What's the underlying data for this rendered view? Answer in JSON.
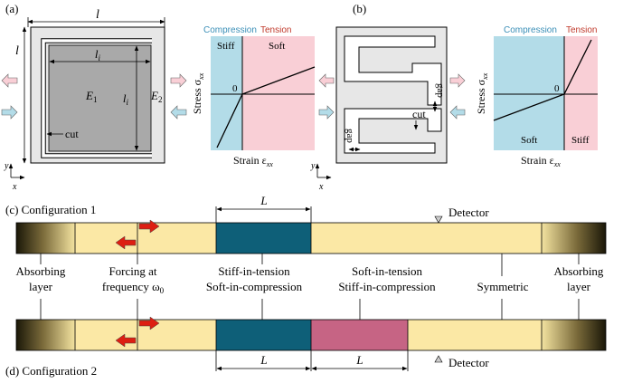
{
  "colors": {
    "compression": "#3a8fb7",
    "tension": "#c0392b",
    "compression_fill": "#b3dce8",
    "tension_fill": "#f9cfd6",
    "frame_fill": "#e7e7e7",
    "core_fill": "#a9a9a9",
    "bar_fill": "#fbe8a5",
    "stiff_tension_block": "#0e5f78",
    "soft_tension_block": "#c66484",
    "forcing_arrow": "#dd1f12",
    "absorber_dark": "#1a1708",
    "absorber_light": "#f3e3a0"
  },
  "panel_a": {
    "label": "(a)",
    "dim_l_top": "l",
    "dim_l_left": "l",
    "dim_li_horizontal": "l",
    "dim_li_vertical": "l",
    "li_subscript": "i",
    "e1": "E",
    "e1_sub": "1",
    "e2": "E",
    "e2_sub": "2",
    "cut_label": "cut",
    "axis_y": "y",
    "axis_x": "x"
  },
  "panel_b": {
    "label": "(b)",
    "gap_label_right": "gap",
    "gap_label_left": "gap",
    "cut_label": "cut",
    "axis_y": "y",
    "axis_x": "x"
  },
  "graph_a": {
    "header_compression": "Compression",
    "header_tension": "Tension",
    "region_left": "Stiff",
    "region_right": "Soft",
    "origin": "0",
    "ylabel": "Stress σ",
    "ylabel_sub": "xx",
    "xlabel": "Strain ε",
    "xlabel_sub": "xx"
  },
  "graph_b": {
    "header_compression": "Compression",
    "header_tension": "Tension",
    "region_left": "Soft",
    "region_right": "Stiff",
    "origin": "0",
    "ylabel": "Stress σ",
    "ylabel_sub": "xx",
    "xlabel": "Strain ε",
    "xlabel_sub": "xx"
  },
  "config1": {
    "label": "(c) Configuration 1",
    "dim_L": "L",
    "detector": "Detector"
  },
  "config2": {
    "label": "(d) Configuration 2",
    "dim_L1": "L",
    "dim_L2": "L",
    "detector": "Detector"
  },
  "annotations": {
    "absorbing_left_1": "Absorbing",
    "absorbing_left_2": "layer",
    "forcing_1": "Forcing at",
    "forcing_2": "frequency ω",
    "forcing_sub": "0",
    "stiff_tension_1": "Stiff-in-tension",
    "stiff_tension_2": "Soft-in-compression",
    "soft_tension_1": "Soft-in-tension",
    "soft_tension_2": "Stiff-in-compression",
    "symmetric": "Symmetric",
    "absorbing_right_1": "Absorbing",
    "absorbing_right_2": "layer"
  }
}
